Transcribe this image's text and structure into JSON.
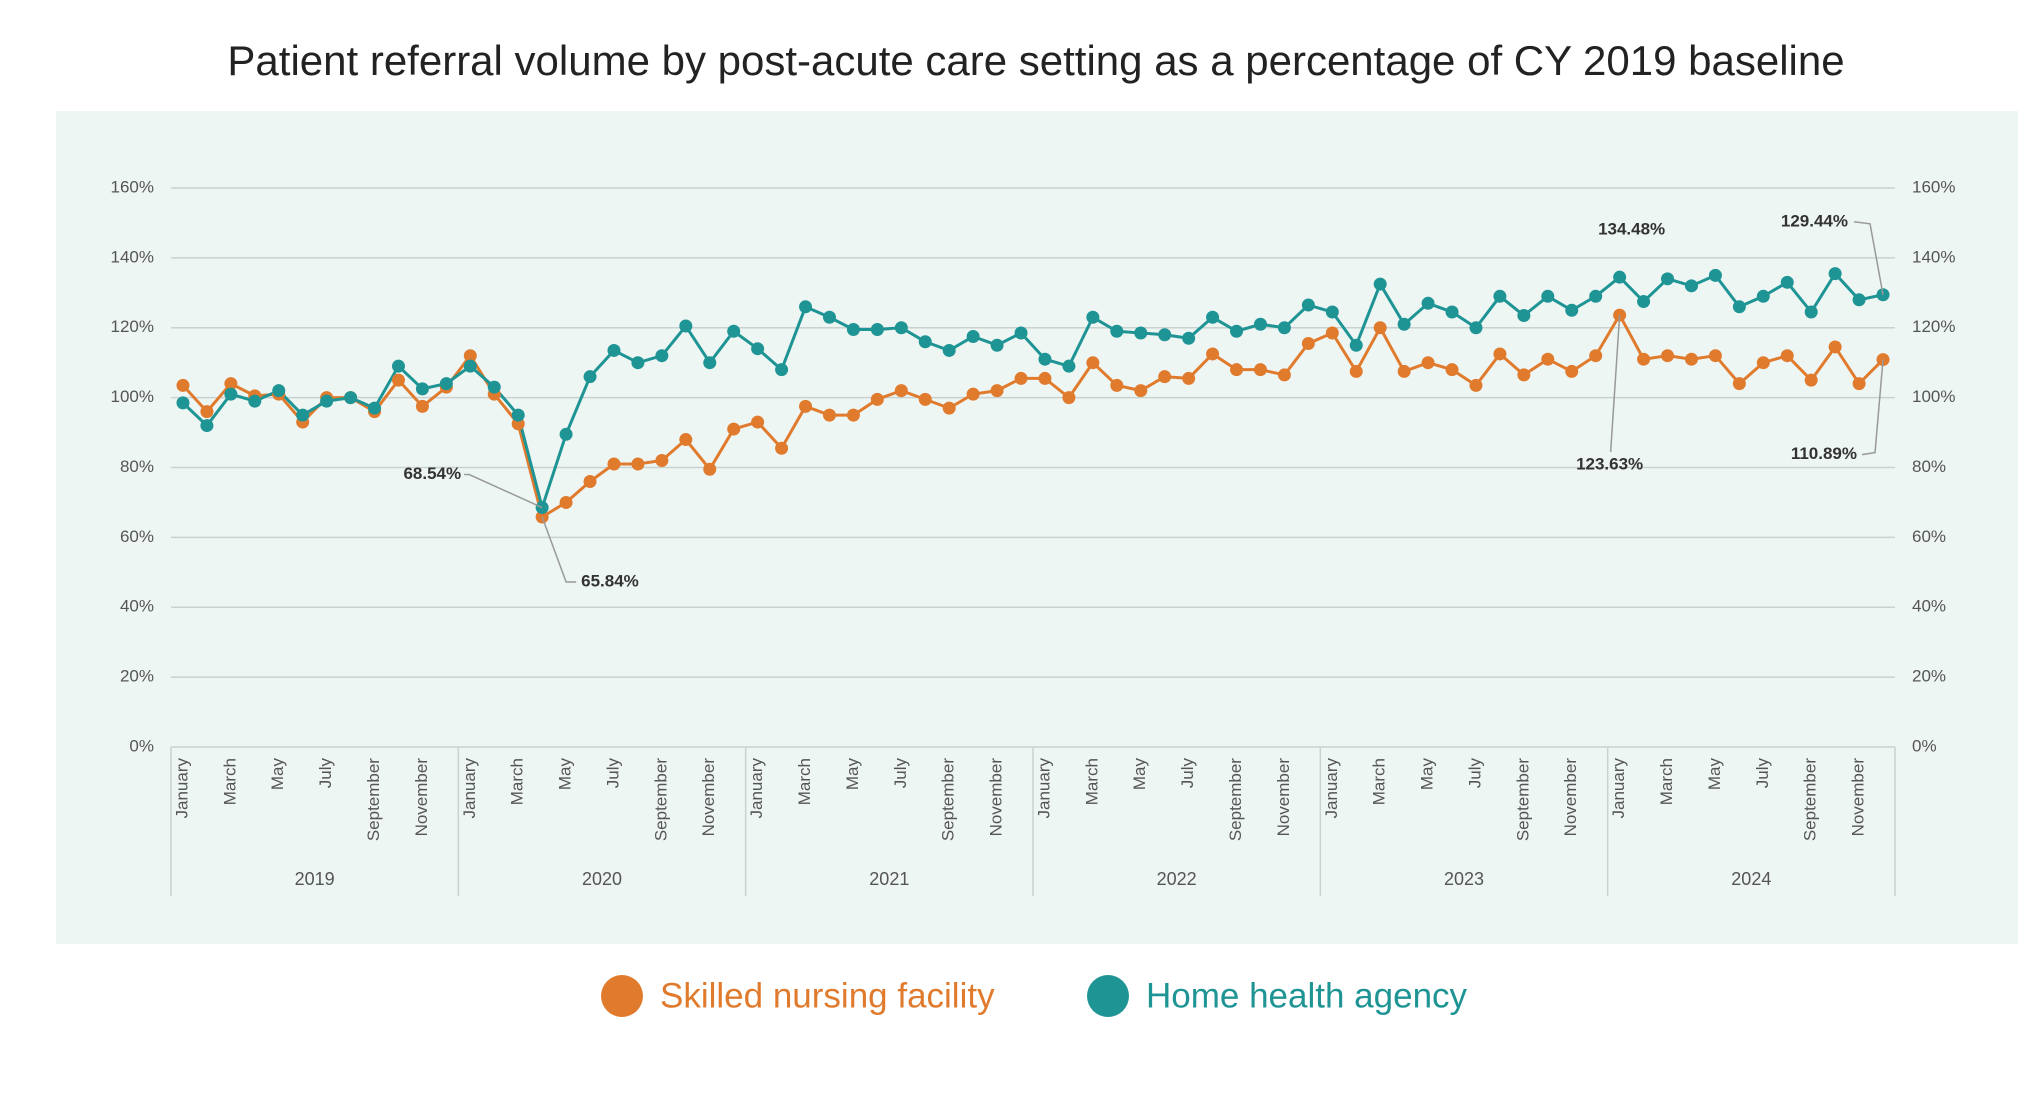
{
  "chart_data": {
    "type": "line",
    "title": "Patient referral volume by post-acute care setting as a percentage of CY 2019 baseline",
    "categories": [
      "January",
      null,
      "March",
      null,
      "May",
      null,
      "July",
      null,
      "September",
      null,
      "November",
      null,
      "January",
      null,
      "March",
      null,
      "May",
      null,
      "July",
      null,
      "September",
      null,
      "November",
      null,
      "January",
      null,
      "March",
      null,
      "May",
      null,
      "July",
      null,
      "September",
      null,
      "November",
      null,
      "January",
      null,
      "March",
      null,
      "May",
      null,
      "July",
      null,
      "September",
      null,
      "November",
      null,
      "January",
      null,
      "March",
      null,
      "May",
      null,
      "July",
      null,
      "September",
      null,
      "November",
      null,
      "January",
      null,
      "March",
      null,
      "May",
      null,
      "July",
      null,
      "September",
      null,
      "November",
      null
    ],
    "years": [
      "2019",
      "2020",
      "2021",
      "2022",
      "2023",
      "2024"
    ],
    "series": [
      {
        "name": "Skilled nursing facility",
        "color": "#e07b2e",
        "values": [
          103.5,
          96,
          104,
          100.5,
          101,
          93,
          100,
          100,
          96,
          105,
          97.5,
          103,
          112,
          101,
          92.5,
          65.84,
          70,
          76,
          81,
          81,
          82,
          88,
          79.5,
          91,
          93,
          85.5,
          97.5,
          95,
          95,
          99.5,
          102,
          99.5,
          97,
          101,
          102,
          105.5,
          105.5,
          100,
          110,
          103.5,
          102,
          106,
          105.5,
          112.5,
          108,
          108,
          106.5,
          115.5,
          118.5,
          107.5,
          120,
          107.5,
          110,
          108,
          103.5,
          112.5,
          106.5,
          111,
          107.5,
          112,
          123.63,
          111,
          112,
          111,
          112,
          104,
          110,
          112,
          105,
          114.5,
          104,
          110.89
        ],
        "value_labels": [
          null,
          null,
          null,
          null,
          null,
          null,
          null,
          null,
          null,
          null,
          null,
          null,
          null,
          null,
          null,
          "65.84%",
          null,
          null,
          null,
          null,
          null,
          null,
          null,
          null,
          null,
          null,
          null,
          null,
          null,
          null,
          null,
          null,
          null,
          null,
          null,
          null,
          null,
          null,
          null,
          null,
          null,
          null,
          null,
          null,
          null,
          null,
          null,
          null,
          null,
          null,
          null,
          null,
          null,
          null,
          null,
          null,
          null,
          null,
          null,
          null,
          "123.63%",
          null,
          null,
          null,
          null,
          null,
          null,
          null,
          null,
          null,
          null,
          "110.89%"
        ]
      },
      {
        "name": "Home health agency",
        "color": "#1f9494",
        "values": [
          98.5,
          92,
          101,
          99,
          102,
          95,
          99,
          100,
          97,
          109,
          102.5,
          104,
          109,
          103,
          95,
          68.54,
          89.5,
          106,
          113.5,
          110,
          112,
          120.5,
          110,
          119,
          114,
          108,
          126,
          123,
          119.5,
          119.5,
          120,
          116,
          113.5,
          117.5,
          115,
          118.5,
          111,
          109,
          123,
          119,
          118.5,
          118,
          117,
          123,
          119,
          121,
          120,
          126.5,
          124.5,
          115,
          132.5,
          121,
          127,
          124.5,
          120,
          129,
          123.5,
          129,
          125,
          129,
          134.48,
          127.5,
          134,
          132,
          135,
          126,
          129,
          133,
          124.5,
          135.5,
          128,
          129.44
        ],
        "value_labels": [
          null,
          null,
          null,
          null,
          null,
          null,
          null,
          null,
          null,
          null,
          null,
          null,
          null,
          null,
          null,
          "68.54%",
          null,
          null,
          null,
          null,
          null,
          null,
          null,
          null,
          null,
          null,
          null,
          null,
          null,
          null,
          null,
          null,
          null,
          null,
          null,
          null,
          null,
          null,
          null,
          null,
          null,
          null,
          null,
          null,
          null,
          null,
          null,
          null,
          null,
          null,
          null,
          null,
          null,
          null,
          null,
          null,
          null,
          null,
          null,
          null,
          "134.48%",
          null,
          null,
          null,
          null,
          null,
          null,
          null,
          null,
          null,
          null,
          "129.44%"
        ]
      }
    ],
    "ylim": [
      0,
      160
    ],
    "yticks": [
      {
        "value": 0,
        "label": "0%"
      },
      {
        "value": 20,
        "label": "20%"
      },
      {
        "value": 40,
        "label": "40%"
      },
      {
        "value": 60,
        "label": "60%"
      },
      {
        "value": 80,
        "label": "80%"
      },
      {
        "value": 100,
        "label": "100%"
      },
      {
        "value": 120,
        "label": "120%"
      },
      {
        "value": 140,
        "label": "140%"
      },
      {
        "value": 160,
        "label": "160%"
      }
    ],
    "grid": true
  }
}
